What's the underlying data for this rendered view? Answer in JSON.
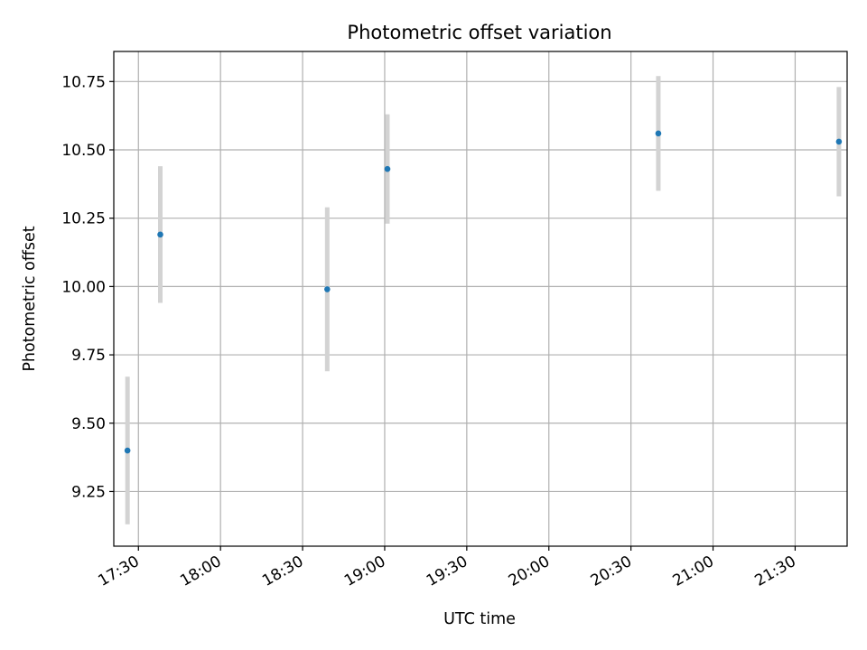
{
  "chart_data": {
    "type": "scatter",
    "title": "Photometric offset variation",
    "xlabel": "UTC time",
    "ylabel": "Photometric offset",
    "xlim": [
      "17:21",
      "21:49"
    ],
    "ylim": [
      9.05,
      10.86
    ],
    "xticks": [
      "17:30",
      "18:00",
      "18:30",
      "19:00",
      "19:30",
      "20:00",
      "20:30",
      "21:00",
      "21:30"
    ],
    "yticks": [
      9.25,
      9.5,
      9.75,
      10.0,
      10.25,
      10.5,
      10.75
    ],
    "ytick_labels": [
      "9.25",
      "9.50",
      "9.75",
      "10.00",
      "10.25",
      "10.50",
      "10.75"
    ],
    "grid": true,
    "marker_color": "#1f77b4",
    "errorbar_color": "#d3d3d3",
    "points": [
      {
        "x": "17:26",
        "y": 9.4,
        "err": 0.27
      },
      {
        "x": "17:38",
        "y": 10.19,
        "err": 0.25
      },
      {
        "x": "18:39",
        "y": 9.99,
        "err": 0.3
      },
      {
        "x": "19:01",
        "y": 10.43,
        "err": 0.2
      },
      {
        "x": "20:40",
        "y": 10.56,
        "err": 0.21
      },
      {
        "x": "21:46",
        "y": 10.53,
        "err": 0.2
      }
    ]
  }
}
